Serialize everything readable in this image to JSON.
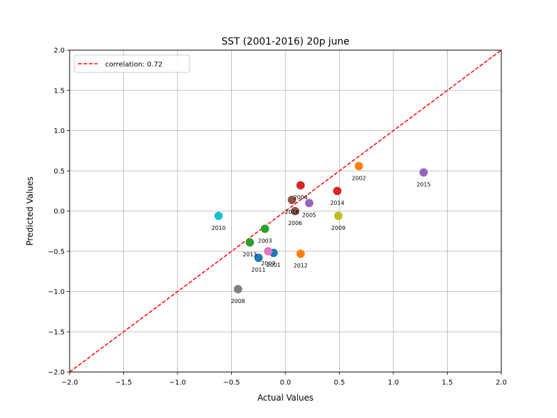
{
  "chart_data": {
    "type": "scatter",
    "title": "SST (2001-2016) 20p june",
    "xlabel": "Actual Values",
    "ylabel": "Predicted Values",
    "xlim": [
      -2.0,
      2.0
    ],
    "ylim": [
      -2.0,
      2.0
    ],
    "xticks": [
      "−2.0",
      "−1.5",
      "−1.0",
      "−0.5",
      "0.0",
      "0.5",
      "1.0",
      "1.5",
      "2.0"
    ],
    "yticks": [
      "−2.0",
      "−1.5",
      "−1.0",
      "−0.5",
      "0.0",
      "0.5",
      "1.0",
      "1.5",
      "2.0"
    ],
    "xtick_values": [
      -2.0,
      -1.5,
      -1.0,
      -0.5,
      0.0,
      0.5,
      1.0,
      1.5,
      2.0
    ],
    "ytick_values": [
      -2.0,
      -1.5,
      -1.0,
      -0.5,
      0.0,
      0.5,
      1.0,
      1.5,
      2.0
    ],
    "grid": true,
    "legend": {
      "placement": "upper-left",
      "entries": [
        {
          "label": "correlation: 0.72",
          "style": "dashed",
          "color": "#ff0000"
        }
      ]
    },
    "reference_line": {
      "from": [
        -2.0,
        -2.0
      ],
      "to": [
        2.0,
        2.0
      ],
      "color": "#ff0000",
      "style": "dashed"
    },
    "points": [
      {
        "label": "2001",
        "x": -0.11,
        "y": -0.52,
        "color": "#1f77b4"
      },
      {
        "label": "2002",
        "x": 0.68,
        "y": 0.56,
        "color": "#ff7f0e"
      },
      {
        "label": "2003",
        "x": -0.19,
        "y": -0.22,
        "color": "#2ca02c"
      },
      {
        "label": "2004",
        "x": 0.14,
        "y": 0.32,
        "color": "#d62728"
      },
      {
        "label": "2005",
        "x": 0.22,
        "y": 0.1,
        "color": "#9467bd"
      },
      {
        "label": "2006",
        "x": 0.09,
        "y": 0.0,
        "color": "#8c564b"
      },
      {
        "label": "2007",
        "x": -0.16,
        "y": -0.5,
        "color": "#e377c2"
      },
      {
        "label": "2008",
        "x": -0.44,
        "y": -0.97,
        "color": "#7f7f7f"
      },
      {
        "label": "2009",
        "x": 0.49,
        "y": -0.06,
        "color": "#bcbd22"
      },
      {
        "label": "2010",
        "x": -0.62,
        "y": -0.06,
        "color": "#17becf"
      },
      {
        "label": "2011",
        "x": -0.25,
        "y": -0.58,
        "color": "#1f77b4"
      },
      {
        "label": "2012",
        "x": 0.14,
        "y": -0.53,
        "color": "#ff7f0e"
      },
      {
        "label": "2013",
        "x": -0.33,
        "y": -0.39,
        "color": "#2ca02c"
      },
      {
        "label": "2014",
        "x": 0.48,
        "y": 0.25,
        "color": "#d62728"
      },
      {
        "label": "2015",
        "x": 1.28,
        "y": 0.48,
        "color": "#9467bd"
      },
      {
        "label": "2016",
        "x": 0.06,
        "y": 0.14,
        "color": "#8c564b"
      }
    ]
  }
}
